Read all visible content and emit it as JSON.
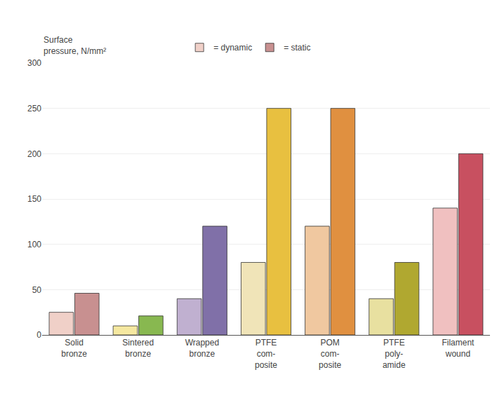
{
  "chart_data": {
    "type": "bar",
    "ylabel": "Surface\npressure, N/mm²",
    "categories": [
      "Solid\nbronze",
      "Sintered\nbronze",
      "Wrapped\nbronze",
      "PTFE\ncom-\nposite",
      "POM\ncom-\nposite",
      "PTFE\npoly-\namide",
      "Filament\nwound"
    ],
    "series": [
      {
        "name": "= dynamic",
        "values": [
          25,
          10,
          40,
          80,
          120,
          40,
          140
        ],
        "colors": [
          "#f0d0c8",
          "#f5e8a0",
          "#c0b0d0",
          "#f0e4b8",
          "#f0c8a0",
          "#e8e0a0",
          "#f0c0c0"
        ]
      },
      {
        "name": "= static",
        "values": [
          46,
          21,
          120,
          250,
          250,
          80,
          200
        ],
        "colors": [
          "#c89090",
          "#88b850",
          "#8070a8",
          "#e8c040",
          "#e09040",
          "#b0a830",
          "#c85060"
        ]
      }
    ],
    "ylim": [
      0,
      300
    ],
    "yticks": [
      0,
      50,
      100,
      150,
      200,
      250,
      300
    ],
    "grid": true
  }
}
